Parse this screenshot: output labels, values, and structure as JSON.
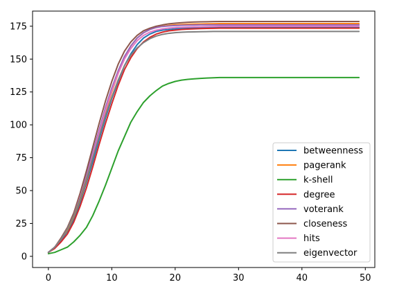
{
  "chart_data": {
    "type": "line",
    "title": "",
    "xlabel": "",
    "ylabel": "",
    "xlim": [
      -2.5,
      51.5
    ],
    "ylim": [
      -8.5,
      186.5
    ],
    "xticks": [
      0,
      10,
      20,
      30,
      40,
      50
    ],
    "yticks": [
      0,
      25,
      50,
      75,
      100,
      125,
      150,
      175
    ],
    "grid": false,
    "legend_position": "lower-right",
    "x": [
      0,
      1,
      2,
      3,
      4,
      5,
      6,
      7,
      8,
      9,
      10,
      11,
      12,
      13,
      14,
      15,
      16,
      17,
      18,
      19,
      20,
      21,
      22,
      23,
      24,
      25,
      26,
      27,
      28,
      29,
      30,
      31,
      32,
      33,
      34,
      35,
      36,
      37,
      38,
      39,
      40,
      41,
      42,
      43,
      44,
      45,
      46,
      47,
      48,
      49
    ],
    "series": [
      {
        "name": "betweenness",
        "color": "#1f77b4",
        "values": [
          3,
          7,
          12,
          19,
          28,
          41,
          56,
          72,
          89,
          105,
          120,
          133,
          145,
          154,
          161,
          166,
          169,
          171,
          172,
          172.5,
          173,
          173.3,
          173.5,
          173.6,
          173.7,
          173.8,
          173.9,
          174,
          174,
          174,
          174,
          174,
          174,
          174,
          174,
          174,
          174,
          174,
          174,
          174,
          174,
          174,
          174,
          174,
          174,
          174,
          174,
          174,
          174,
          174
        ]
      },
      {
        "name": "pagerank",
        "color": "#ff7f0e",
        "values": [
          3,
          7,
          13,
          20,
          30,
          43,
          58,
          75,
          93,
          110,
          125,
          139,
          151,
          160,
          166,
          170,
          172.5,
          174,
          175,
          175.6,
          176,
          176.3,
          176.5,
          176.6,
          176.7,
          176.8,
          176.9,
          177,
          177,
          177,
          177,
          177,
          177,
          177,
          177,
          177,
          177,
          177,
          177,
          177,
          177,
          177,
          177,
          177,
          177,
          177,
          177,
          177,
          177,
          177
        ]
      },
      {
        "name": "k-shell",
        "color": "#2ca02c",
        "values": [
          2,
          3,
          5,
          7,
          11,
          16,
          22,
          31,
          42,
          54,
          67,
          80,
          91,
          102,
          110,
          117,
          122,
          126,
          129.5,
          131.5,
          133,
          134,
          134.6,
          135,
          135.3,
          135.6,
          135.8,
          136,
          136,
          136,
          136,
          136,
          136,
          136,
          136,
          136,
          136,
          136,
          136,
          136,
          136,
          136,
          136,
          136,
          136,
          136,
          136,
          136,
          136,
          136
        ]
      },
      {
        "name": "degree",
        "color": "#d62728",
        "values": [
          3,
          6,
          11,
          17,
          26,
          38,
          52,
          68,
          85,
          101,
          116,
          130,
          142,
          151,
          158,
          163,
          166.5,
          169,
          170.5,
          171.5,
          172,
          172.5,
          172.8,
          173,
          173.2,
          173.3,
          173.4,
          173.5,
          173.5,
          173.5,
          173.5,
          173.5,
          173.5,
          173.5,
          173.5,
          173.5,
          173.5,
          173.5,
          173.5,
          173.5,
          173.5,
          173.5,
          173.5,
          173.5,
          173.5,
          173.5,
          173.5,
          173.5,
          173.5,
          173.5
        ]
      },
      {
        "name": "voterank",
        "color": "#9467bd",
        "values": [
          3,
          7,
          13,
          21,
          32,
          46,
          62,
          79,
          96,
          113,
          128,
          141,
          152,
          160,
          166,
          170,
          172.5,
          174,
          174.8,
          175.2,
          175.5,
          175.7,
          175.8,
          175.9,
          176,
          176,
          176,
          176,
          176,
          176,
          176,
          176,
          176,
          176,
          176,
          176,
          176,
          176,
          176,
          176,
          176,
          176,
          176,
          176,
          176,
          176,
          176,
          176,
          176,
          176
        ]
      },
      {
        "name": "closeness",
        "color": "#8c564b",
        "values": [
          3,
          7,
          14,
          22,
          33,
          48,
          65,
          83,
          101,
          118,
          133,
          146,
          156,
          163,
          168,
          171.5,
          173.5,
          175,
          176,
          176.8,
          177.3,
          177.7,
          178,
          178.2,
          178.3,
          178.4,
          178.5,
          178.6,
          178.6,
          178.6,
          178.6,
          178.6,
          178.6,
          178.6,
          178.6,
          178.6,
          178.6,
          178.6,
          178.6,
          178.6,
          178.6,
          178.6,
          178.6,
          178.6,
          178.6,
          178.6,
          178.6,
          178.6,
          178.6,
          178.6
        ]
      },
      {
        "name": "hits",
        "color": "#e377c2",
        "values": [
          3,
          7,
          13,
          21,
          31,
          45,
          60,
          77,
          94,
          111,
          126,
          139,
          150,
          158,
          164,
          168,
          170.5,
          172,
          173,
          173.6,
          174,
          174.2,
          174.4,
          174.5,
          174.6,
          174.7,
          174.8,
          174.9,
          175,
          175,
          175,
          175,
          175,
          175,
          175,
          175,
          175,
          175,
          175,
          175,
          175,
          175,
          175,
          175,
          175,
          175,
          175,
          175,
          175,
          175
        ]
      },
      {
        "name": "eigenvector",
        "color": "#7f7f7f",
        "values": [
          3,
          7,
          13,
          21,
          31,
          44,
          59,
          75,
          91,
          107,
          121,
          134,
          145,
          153,
          158.5,
          162.5,
          165.5,
          167.5,
          168.8,
          169.6,
          170.1,
          170.4,
          170.6,
          170.7,
          170.8,
          170.9,
          171,
          171,
          171,
          171,
          171,
          171,
          171,
          171,
          171,
          171,
          171,
          171,
          171,
          171,
          171,
          171,
          171,
          171,
          171,
          171,
          171,
          171,
          171,
          171
        ]
      }
    ]
  }
}
